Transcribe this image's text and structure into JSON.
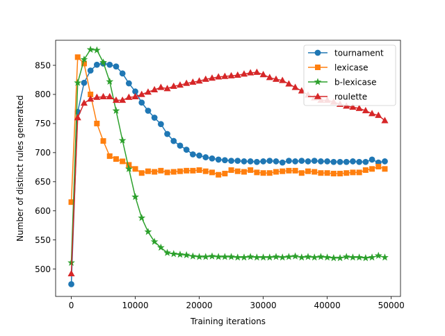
{
  "chart_data": {
    "type": "line",
    "title": "",
    "xlabel": "Training iterations",
    "ylabel": "Number of distinct rules generated",
    "xlim": [
      -2450,
      51450
    ],
    "ylim": [
      453,
      893
    ],
    "xticks": [
      0,
      10000,
      20000,
      30000,
      40000,
      50000
    ],
    "xtick_labels": [
      "0",
      "10000",
      "20000",
      "30000",
      "40000",
      "50000"
    ],
    "yticks": [
      500,
      550,
      600,
      650,
      700,
      750,
      800,
      850
    ],
    "ytick_labels": [
      "500",
      "550",
      "600",
      "650",
      "700",
      "750",
      "800",
      "850"
    ],
    "grid": false,
    "legend_position": "top-right",
    "x": [
      0,
      1000,
      2000,
      3000,
      4000,
      5000,
      6000,
      7000,
      8000,
      9000,
      10000,
      11000,
      12000,
      13000,
      14000,
      15000,
      16000,
      17000,
      18000,
      19000,
      20000,
      21000,
      22000,
      23000,
      24000,
      25000,
      26000,
      27000,
      28000,
      29000,
      30000,
      31000,
      32000,
      33000,
      34000,
      35000,
      36000,
      37000,
      38000,
      39000,
      40000,
      41000,
      42000,
      43000,
      44000,
      45000,
      46000,
      47000,
      48000,
      49000
    ],
    "series": [
      {
        "name": "tournament",
        "color": "#1f77b4",
        "marker": "circle",
        "values": [
          474,
          770,
          820,
          841,
          851,
          853,
          851,
          848,
          836,
          819,
          805,
          786,
          772,
          760,
          749,
          732,
          720,
          712,
          705,
          697,
          695,
          692,
          690,
          688,
          687,
          686,
          686,
          685,
          685,
          684,
          685,
          686,
          685,
          683,
          686,
          685,
          686,
          685,
          686,
          685,
          685,
          684,
          684,
          684,
          685,
          684,
          684,
          688,
          683,
          685
        ]
      },
      {
        "name": "lexicase",
        "color": "#ff7f0e",
        "marker": "square",
        "values": [
          615,
          864,
          853,
          800,
          750,
          720,
          694,
          689,
          685,
          679,
          672,
          665,
          668,
          667,
          669,
          666,
          667,
          668,
          669,
          669,
          670,
          668,
          666,
          662,
          664,
          670,
          668,
          667,
          670,
          666,
          665,
          665,
          667,
          668,
          669,
          669,
          665,
          668,
          667,
          665,
          665,
          664,
          664,
          665,
          666,
          666,
          670,
          672,
          676,
          672
        ]
      },
      {
        "name": "b-lexicase",
        "color": "#2ca02c",
        "marker": "star",
        "values": [
          511,
          820,
          860,
          877,
          876,
          855,
          822,
          772,
          721,
          672,
          624,
          588,
          564,
          547,
          537,
          528,
          526,
          525,
          524,
          522,
          521,
          521,
          522,
          521,
          521,
          521,
          520,
          520,
          521,
          520,
          520,
          520,
          521,
          520,
          521,
          522,
          520,
          521,
          520,
          521,
          520,
          519,
          519,
          521,
          520,
          520,
          519,
          520,
          523,
          520
        ]
      },
      {
        "name": "roulette",
        "color": "#d62728",
        "marker": "triangle",
        "values": [
          492,
          760,
          785,
          792,
          795,
          796,
          796,
          790,
          790,
          795,
          796,
          800,
          804,
          808,
          812,
          810,
          814,
          816,
          819,
          821,
          823,
          826,
          828,
          830,
          831,
          832,
          833,
          835,
          837,
          838,
          834,
          829,
          826,
          824,
          818,
          812,
          806,
          799,
          794,
          790,
          790,
          787,
          783,
          780,
          778,
          776,
          772,
          767,
          764,
          755
        ]
      }
    ]
  }
}
